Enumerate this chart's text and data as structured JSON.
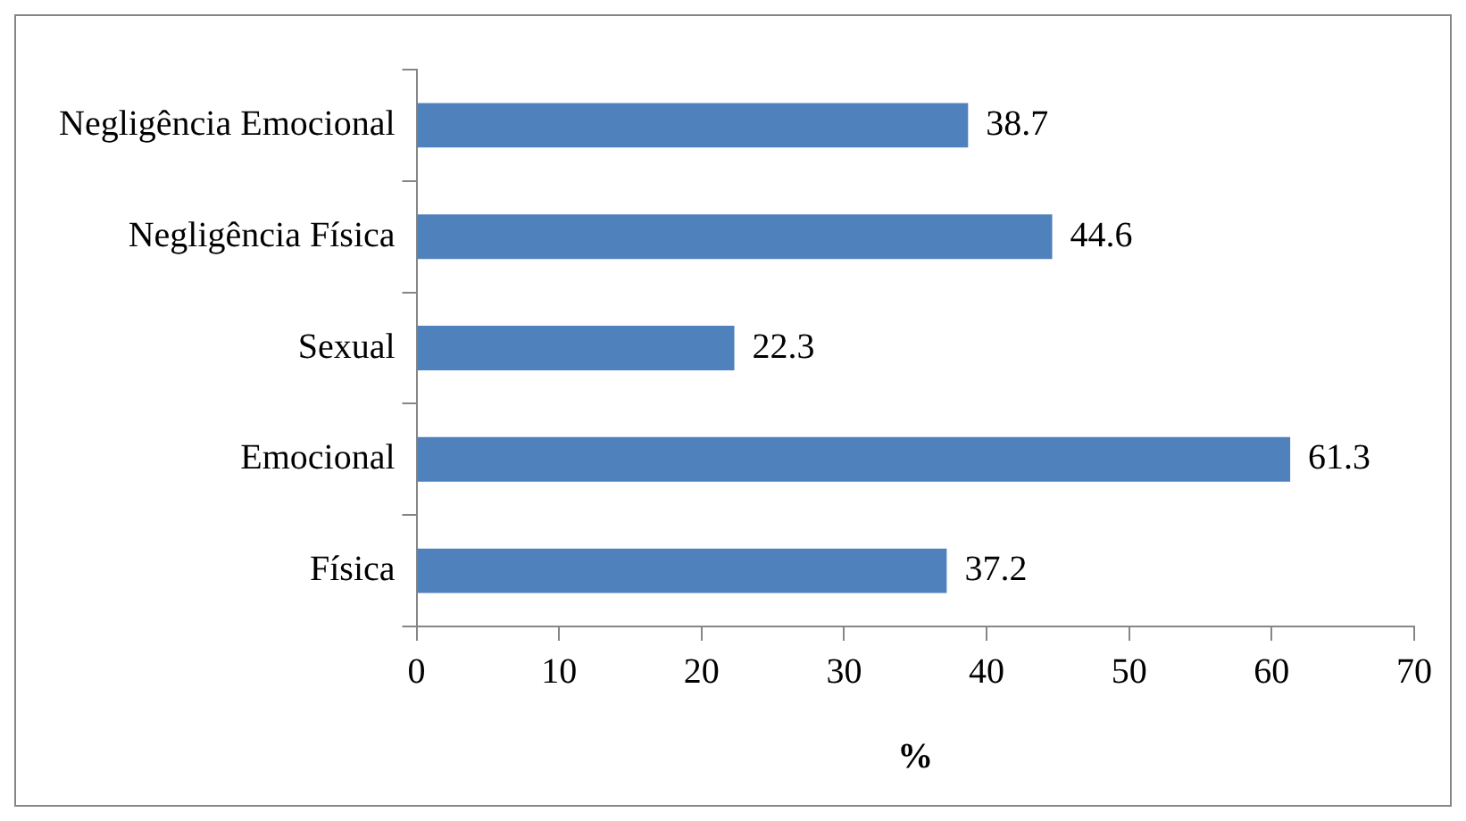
{
  "chart_data": {
    "type": "bar",
    "orientation": "horizontal",
    "xlabel": "%",
    "categories": [
      "Negligência Emocional",
      "Negligência Física",
      "Sexual",
      "Emocional",
      "Física"
    ],
    "values": [
      38.7,
      44.6,
      22.3,
      61.3,
      37.2
    ],
    "color": "#4f81bd",
    "xlim": [
      0,
      70
    ],
    "xticks": [
      0,
      10,
      20,
      30,
      40,
      50,
      60,
      70
    ],
    "grid": false,
    "legend": false,
    "data_labels": true
  }
}
